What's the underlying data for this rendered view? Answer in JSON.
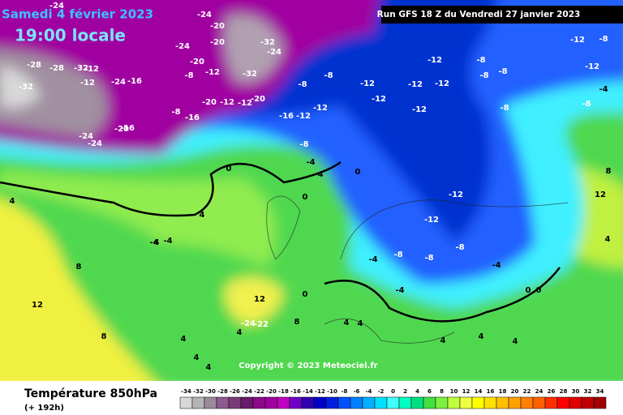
{
  "header": {
    "date": "Samedi 4 février 2023",
    "time": "19:00 locale",
    "run": "Run GFS 18 Z du Vendredi 27 janvier 2023"
  },
  "copyright": "Copyright © 2023 Meteociel.fr",
  "footer": {
    "title": "Température 850hPa",
    "lead": "(+ 192h)"
  },
  "legend": {
    "values": [
      -34,
      -32,
      -30,
      -28,
      -26,
      -24,
      -22,
      -20,
      -18,
      -16,
      -14,
      -12,
      -10,
      -8,
      -6,
      -4,
      -2,
      0,
      2,
      4,
      6,
      8,
      10,
      12,
      14,
      16,
      18,
      20,
      22,
      24,
      26,
      28,
      30,
      32,
      34
    ],
    "colors": [
      "#d8d8d8",
      "#b4b4b4",
      "#9a8a9a",
      "#8c5a8c",
      "#7a3a7a",
      "#6a1a6a",
      "#8a0a8a",
      "#a000a0",
      "#c000c0",
      "#7000c8",
      "#3000b0",
      "#0000c8",
      "#0020e0",
      "#0050ff",
      "#0080ff",
      "#00b0ff",
      "#00e0ff",
      "#40ffff",
      "#00ffc0",
      "#00e080",
      "#40e040",
      "#80f040",
      "#c0ff40",
      "#f0ff40",
      "#ffff00",
      "#ffe000",
      "#ffc000",
      "#ffa000",
      "#ff8000",
      "#ff6000",
      "#ff3000",
      "#ff0000",
      "#e00000",
      "#c00000",
      "#a00000"
    ]
  },
  "contour_labels": [
    -24,
    -24,
    -20,
    -20,
    -24,
    -20,
    -28,
    -28,
    -32,
    -12,
    -24,
    -16,
    -8,
    -12,
    -32,
    -32,
    -24,
    -8,
    -8,
    -12,
    -12,
    -12,
    -12,
    -8,
    -8,
    -8,
    -12,
    -8,
    -4,
    -8,
    -20,
    -12,
    -20,
    -12,
    -16,
    -8,
    -16,
    -12,
    -12,
    -12,
    -12,
    -8,
    -8,
    -4,
    0,
    -4,
    0,
    0,
    -12,
    -12,
    4,
    8,
    4,
    -4,
    -8,
    -8,
    -4,
    8,
    12,
    -8,
    -4,
    0,
    0,
    4,
    -4,
    12,
    8,
    4,
    4,
    4,
    4,
    -24,
    -22,
    4,
    4,
    0,
    8,
    12,
    4,
    4,
    4,
    -20,
    -24,
    -24,
    -32,
    -16,
    -12,
    4,
    -4,
    -12
  ]
}
